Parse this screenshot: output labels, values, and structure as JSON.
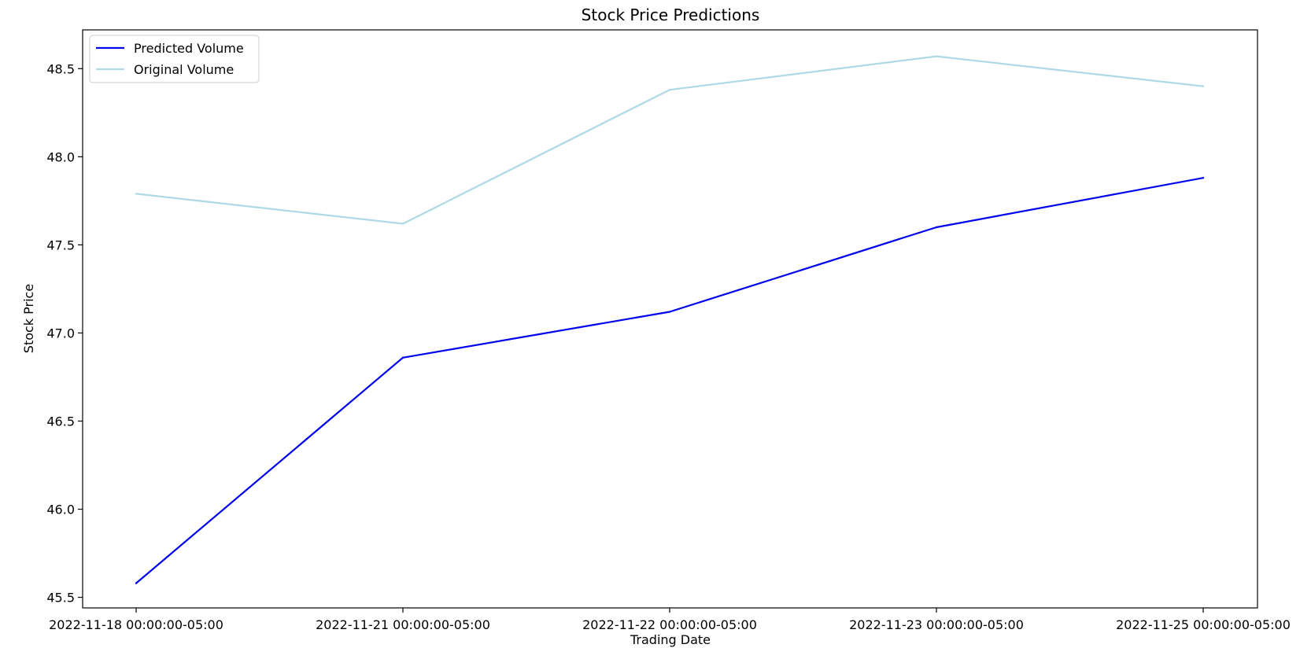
{
  "chart_data": {
    "type": "line",
    "title": "Stock Price Predictions",
    "xlabel": "Trading Date",
    "ylabel": "Stock Price",
    "categories": [
      "2022-11-18 00:00:00-05:00",
      "2022-11-21 00:00:00-05:00",
      "2022-11-22 00:00:00-05:00",
      "2022-11-23 00:00:00-05:00",
      "2022-11-25 00:00:00-05:00"
    ],
    "ylim": [
      45.44,
      48.72
    ],
    "yticks": [
      "45.5",
      "46.0",
      "46.5",
      "47.0",
      "47.5",
      "48.0",
      "48.5"
    ],
    "grid": false,
    "legend_position": "upper-left",
    "series": [
      {
        "name": "Predicted Volume",
        "color": "#0000ee",
        "values": [
          45.58,
          46.86,
          47.12,
          47.6,
          47.88
        ]
      },
      {
        "name": "Original Volume",
        "color": "#add8e6",
        "values": [
          47.79,
          47.62,
          48.38,
          48.57,
          48.4
        ]
      }
    ]
  }
}
